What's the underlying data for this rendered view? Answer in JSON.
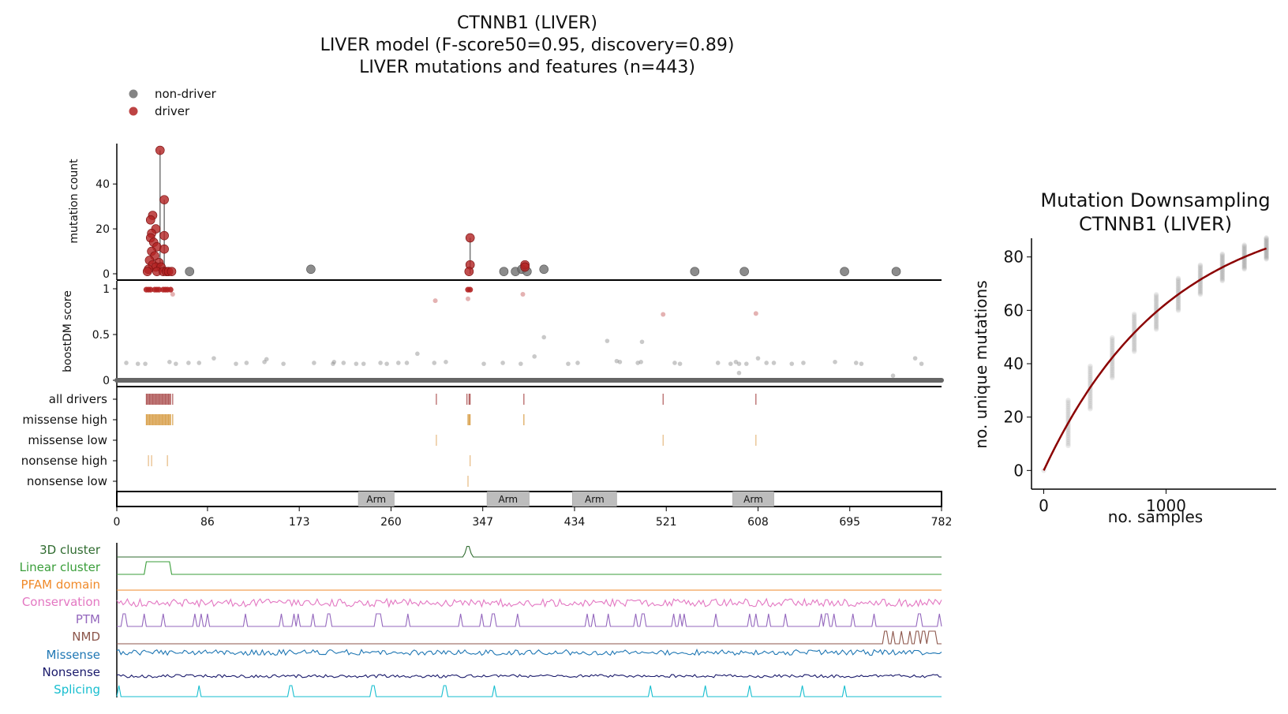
{
  "figure": {
    "title_lines": [
      "CTNNB1 (LIVER)",
      "LIVER model (F-score50=0.95, discovery=0.89)",
      "LIVER mutations and features (n=443)"
    ],
    "legend": [
      {
        "label": "non-driver",
        "color": "#6f6f6f"
      },
      {
        "label": "driver",
        "color": "#b22222"
      }
    ]
  },
  "chart_data": [
    {
      "id": "mutation_count",
      "type": "scatter",
      "ylabel": "mutation count",
      "xlim": [
        0,
        782
      ],
      "ylim": [
        0,
        58
      ],
      "yticks": [
        0,
        20,
        40
      ],
      "driver_points": [
        {
          "x": 41,
          "y": 55
        },
        {
          "x": 45,
          "y": 33
        },
        {
          "x": 34,
          "y": 26
        },
        {
          "x": 32,
          "y": 24
        },
        {
          "x": 37,
          "y": 20
        },
        {
          "x": 33,
          "y": 18
        },
        {
          "x": 45,
          "y": 17
        },
        {
          "x": 32,
          "y": 16
        },
        {
          "x": 35,
          "y": 14
        },
        {
          "x": 38,
          "y": 12
        },
        {
          "x": 45,
          "y": 11
        },
        {
          "x": 33,
          "y": 10
        },
        {
          "x": 36,
          "y": 8
        },
        {
          "x": 31,
          "y": 6
        },
        {
          "x": 40,
          "y": 5
        },
        {
          "x": 34,
          "y": 4
        },
        {
          "x": 37,
          "y": 3
        },
        {
          "x": 42,
          "y": 3
        },
        {
          "x": 30,
          "y": 2
        },
        {
          "x": 29,
          "y": 1
        },
        {
          "x": 38,
          "y": 1
        },
        {
          "x": 44,
          "y": 1
        },
        {
          "x": 47,
          "y": 1
        },
        {
          "x": 49,
          "y": 1
        },
        {
          "x": 52,
          "y": 1
        },
        {
          "x": 335,
          "y": 16
        },
        {
          "x": 335,
          "y": 4
        },
        {
          "x": 334,
          "y": 1
        },
        {
          "x": 387,
          "y": 4
        },
        {
          "x": 387,
          "y": 3
        }
      ],
      "nondriver_points": [
        {
          "x": 69,
          "y": 1
        },
        {
          "x": 184,
          "y": 2
        },
        {
          "x": 367,
          "y": 1
        },
        {
          "x": 378,
          "y": 1
        },
        {
          "x": 384,
          "y": 2
        },
        {
          "x": 389,
          "y": 1
        },
        {
          "x": 405,
          "y": 2
        },
        {
          "x": 548,
          "y": 1
        },
        {
          "x": 595,
          "y": 1
        },
        {
          "x": 690,
          "y": 1
        },
        {
          "x": 739,
          "y": 1
        }
      ],
      "stems": [
        {
          "x": 41,
          "y": 55
        },
        {
          "x": 45,
          "y": 33
        },
        {
          "x": 335,
          "y": 16
        }
      ]
    },
    {
      "id": "boostdm_score",
      "type": "scatter",
      "ylabel": "boostDM score",
      "xlim": [
        0,
        782
      ],
      "ylim": [
        0,
        1
      ],
      "yticks": [
        0,
        0.5,
        1
      ],
      "ytick_labels": [
        "0",
        "0.5",
        "1"
      ],
      "driver_points": [
        {
          "x": 28,
          "y": 0.99
        },
        {
          "x": 32,
          "y": 0.99
        },
        {
          "x": 36,
          "y": 0.99
        },
        {
          "x": 40,
          "y": 0.99
        },
        {
          "x": 44,
          "y": 0.99
        },
        {
          "x": 48,
          "y": 0.99
        },
        {
          "x": 51,
          "y": 0.99
        },
        {
          "x": 30,
          "y": 0.99
        },
        {
          "x": 38,
          "y": 0.99
        },
        {
          "x": 46,
          "y": 0.99
        },
        {
          "x": 53,
          "y": 0.94
        },
        {
          "x": 302,
          "y": 0.87
        },
        {
          "x": 333,
          "y": 0.99
        },
        {
          "x": 335,
          "y": 0.99
        },
        {
          "x": 333,
          "y": 0.89
        },
        {
          "x": 385,
          "y": 0.94
        },
        {
          "x": 518,
          "y": 0.72
        },
        {
          "x": 606,
          "y": 0.73
        }
      ],
      "nondriver_points": [
        {
          "x": 9,
          "y": 0.19
        },
        {
          "x": 20,
          "y": 0.18
        },
        {
          "x": 27,
          "y": 0.18
        },
        {
          "x": 50,
          "y": 0.2
        },
        {
          "x": 56,
          "y": 0.18
        },
        {
          "x": 68,
          "y": 0.19
        },
        {
          "x": 78,
          "y": 0.19
        },
        {
          "x": 92,
          "y": 0.24
        },
        {
          "x": 113,
          "y": 0.18
        },
        {
          "x": 123,
          "y": 0.19
        },
        {
          "x": 140,
          "y": 0.2
        },
        {
          "x": 142,
          "y": 0.23
        },
        {
          "x": 158,
          "y": 0.18
        },
        {
          "x": 187,
          "y": 0.19
        },
        {
          "x": 205,
          "y": 0.18
        },
        {
          "x": 206,
          "y": 0.2
        },
        {
          "x": 215,
          "y": 0.19
        },
        {
          "x": 227,
          "y": 0.18
        },
        {
          "x": 234,
          "y": 0.18
        },
        {
          "x": 250,
          "y": 0.19
        },
        {
          "x": 256,
          "y": 0.18
        },
        {
          "x": 267,
          "y": 0.19
        },
        {
          "x": 275,
          "y": 0.19
        },
        {
          "x": 285,
          "y": 0.29
        },
        {
          "x": 301,
          "y": 0.19
        },
        {
          "x": 312,
          "y": 0.2
        },
        {
          "x": 348,
          "y": 0.18
        },
        {
          "x": 366,
          "y": 0.19
        },
        {
          "x": 383,
          "y": 0.18
        },
        {
          "x": 396,
          "y": 0.26
        },
        {
          "x": 405,
          "y": 0.47
        },
        {
          "x": 428,
          "y": 0.18
        },
        {
          "x": 437,
          "y": 0.19
        },
        {
          "x": 465,
          "y": 0.43
        },
        {
          "x": 474,
          "y": 0.21
        },
        {
          "x": 477,
          "y": 0.2
        },
        {
          "x": 494,
          "y": 0.19
        },
        {
          "x": 497,
          "y": 0.2
        },
        {
          "x": 498,
          "y": 0.42
        },
        {
          "x": 529,
          "y": 0.19
        },
        {
          "x": 534,
          "y": 0.18
        },
        {
          "x": 570,
          "y": 0.19
        },
        {
          "x": 582,
          "y": 0.18
        },
        {
          "x": 587,
          "y": 0.2
        },
        {
          "x": 590,
          "y": 0.18
        },
        {
          "x": 597,
          "y": 0.18
        },
        {
          "x": 608,
          "y": 0.24
        },
        {
          "x": 616,
          "y": 0.19
        },
        {
          "x": 640,
          "y": 0.18
        },
        {
          "x": 651,
          "y": 0.19
        },
        {
          "x": 681,
          "y": 0.2
        },
        {
          "x": 701,
          "y": 0.19
        },
        {
          "x": 706,
          "y": 0.18
        },
        {
          "x": 757,
          "y": 0.24
        },
        {
          "x": 763,
          "y": 0.18
        },
        {
          "x": 736,
          "y": 0.05
        },
        {
          "x": 590,
          "y": 0.08
        },
        {
          "x": 623,
          "y": 0.19
        }
      ],
      "baseline": {
        "y": 0,
        "from": 0,
        "to": 782
      }
    },
    {
      "id": "consequence_tracks",
      "type": "scatter",
      "rows": [
        {
          "label": "all drivers",
          "color": "#b05a5a",
          "x": [
            28,
            29,
            30,
            31,
            32,
            33,
            34,
            35,
            36,
            37,
            38,
            39,
            40,
            41,
            42,
            43,
            44,
            45,
            46,
            47,
            48,
            49,
            50,
            51,
            53,
            303,
            332,
            334,
            335,
            386,
            518,
            606
          ]
        },
        {
          "label": "missense high",
          "color": "#d9a24f",
          "x": [
            28,
            29,
            30,
            31,
            32,
            33,
            34,
            35,
            36,
            37,
            38,
            39,
            40,
            41,
            42,
            43,
            44,
            45,
            46,
            47,
            48,
            49,
            50,
            51,
            53,
            333,
            334,
            335,
            386
          ]
        },
        {
          "label": "missense low",
          "color": "#e6b980",
          "x": [
            303,
            518,
            606
          ]
        },
        {
          "label": "nonsense high",
          "color": "#e6b980",
          "x": [
            30,
            33,
            48,
            335
          ]
        },
        {
          "label": "nonsense low",
          "color": "#e6b980",
          "x": [
            333
          ]
        }
      ]
    },
    {
      "id": "domains",
      "type": "bar",
      "domains": [
        {
          "label": "Arm",
          "start": 229,
          "end": 263
        },
        {
          "label": "Arm",
          "start": 351,
          "end": 391
        },
        {
          "label": "Arm",
          "start": 432,
          "end": 474
        },
        {
          "label": "Arm",
          "start": 584,
          "end": 623
        }
      ],
      "xticks": [
        0,
        86,
        173,
        260,
        347,
        434,
        521,
        608,
        695,
        782
      ]
    },
    {
      "id": "feature_tracks",
      "type": "line",
      "tracks": [
        {
          "label": "3D cluster",
          "color": "#2f6b2f"
        },
        {
          "label": "Linear cluster",
          "color": "#3a9e3a"
        },
        {
          "label": "PFAM domain",
          "color": "#f08a2a"
        },
        {
          "label": "Conservation",
          "color": "#e377c2"
        },
        {
          "label": "PTM",
          "color": "#9467bd"
        },
        {
          "label": "NMD",
          "color": "#8c564b"
        },
        {
          "label": "Missense",
          "color": "#1f77b4"
        },
        {
          "label": "Nonsense",
          "color": "#1a1a6b"
        },
        {
          "label": "Splicing",
          "color": "#17becf"
        }
      ]
    },
    {
      "id": "downsampling",
      "type": "scatter",
      "title_lines": [
        "Mutation Downsampling",
        "CTNNB1 (LIVER)"
      ],
      "xlabel": "no. samples",
      "ylabel": "no. unique mutations",
      "xlim": [
        -100,
        1900
      ],
      "ylim": [
        -7,
        87
      ],
      "xticks": [
        0,
        1000
      ],
      "yticks": [
        0,
        20,
        40,
        60,
        80
      ],
      "sample_points": [
        0,
        200,
        380,
        560,
        740,
        920,
        1100,
        1280,
        1460,
        1640,
        1820
      ],
      "curve": {
        "a": 100,
        "k": 0.00098
      }
    }
  ]
}
